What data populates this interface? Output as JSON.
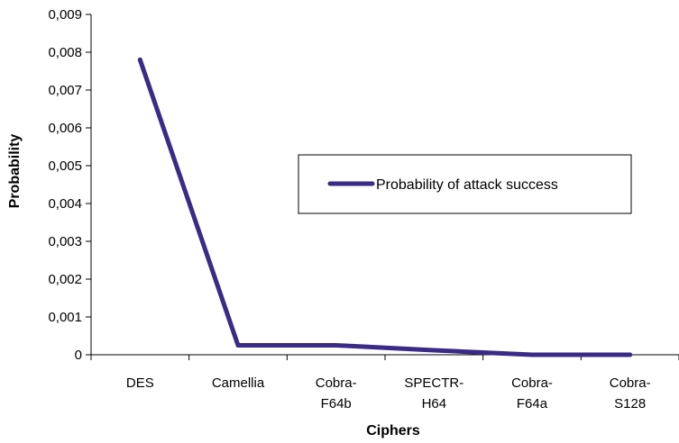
{
  "chart_data": {
    "type": "line",
    "categories": [
      [
        "DES"
      ],
      [
        "Camellia"
      ],
      [
        "Cobra-",
        "F64b"
      ],
      [
        "SPECTR-",
        "H64"
      ],
      [
        "Cobra-",
        "F64a"
      ],
      [
        "Cobra-",
        "S128"
      ]
    ],
    "series": [
      {
        "name": "Probability of attack success",
        "values": [
          0.0078,
          0.00025,
          0.00025,
          0.00012,
          0.0,
          0.0
        ],
        "color": "#3b2a86"
      }
    ],
    "xlabel": "Ciphers",
    "ylabel": "Probability",
    "ylim": [
      0,
      0.009
    ],
    "yticks": [
      "0",
      "0,001",
      "0,002",
      "0,003",
      "0,004",
      "0,005",
      "0,006",
      "0,007",
      "0,008",
      "0,009"
    ],
    "grid": false,
    "legend_position": "center-right"
  }
}
